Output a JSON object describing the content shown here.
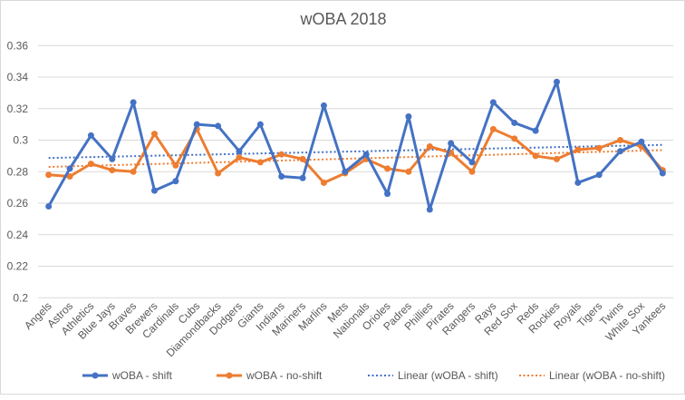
{
  "chart_data": {
    "type": "line",
    "title": "wOBA 2018",
    "xlabel": "",
    "ylabel": "",
    "ylim": [
      0.2,
      0.36
    ],
    "yticks": [
      "0.2",
      "0.22",
      "0.24",
      "0.26",
      "0.28",
      "0.3",
      "0.32",
      "0.34",
      "0.36"
    ],
    "grid": true,
    "legend_position": "bottom",
    "categories": [
      "Angels",
      "Astros",
      "Athletics",
      "Blue Jays",
      "Braves",
      "Brewers",
      "Cardinals",
      "Cubs",
      "Diamondbacks",
      "Dodgers",
      "Giants",
      "Indians",
      "Mariners",
      "Marlins",
      "Mets",
      "Nationals",
      "Orioles",
      "Padres",
      "Phillies",
      "Pirates",
      "Rangers",
      "Rays",
      "Red Sox",
      "Reds",
      "Rockies",
      "Royals",
      "Tigers",
      "Twins",
      "White Sox",
      "Yankees"
    ],
    "series": [
      {
        "name": "wOBA - shift",
        "color": "#4472c4",
        "values": [
          0.258,
          0.282,
          0.303,
          0.288,
          0.324,
          0.268,
          0.274,
          0.31,
          0.309,
          0.293,
          0.31,
          0.277,
          0.276,
          0.322,
          0.28,
          0.291,
          0.266,
          0.315,
          0.256,
          0.298,
          0.286,
          0.324,
          0.311,
          0.306,
          0.337,
          0.273,
          0.278,
          0.293,
          0.299,
          0.279
        ]
      },
      {
        "name": "wOBA - no-shift",
        "color": "#ed7d31",
        "values": [
          0.278,
          0.277,
          0.285,
          0.281,
          0.28,
          0.304,
          0.284,
          0.307,
          0.279,
          0.289,
          0.286,
          0.291,
          0.288,
          0.273,
          0.279,
          0.288,
          0.282,
          0.28,
          0.296,
          0.292,
          0.28,
          0.307,
          0.301,
          0.29,
          0.288,
          0.294,
          0.295,
          0.3,
          0.296,
          0.281
        ]
      }
    ],
    "trendlines": [
      {
        "name": "Linear (wOBA - shift)",
        "type": "linear",
        "of": "wOBA - shift",
        "color": "#4472c4"
      },
      {
        "name": "Linear (wOBA - no-shift)",
        "type": "linear",
        "of": "wOBA - no-shift",
        "color": "#ed7d31"
      }
    ]
  }
}
